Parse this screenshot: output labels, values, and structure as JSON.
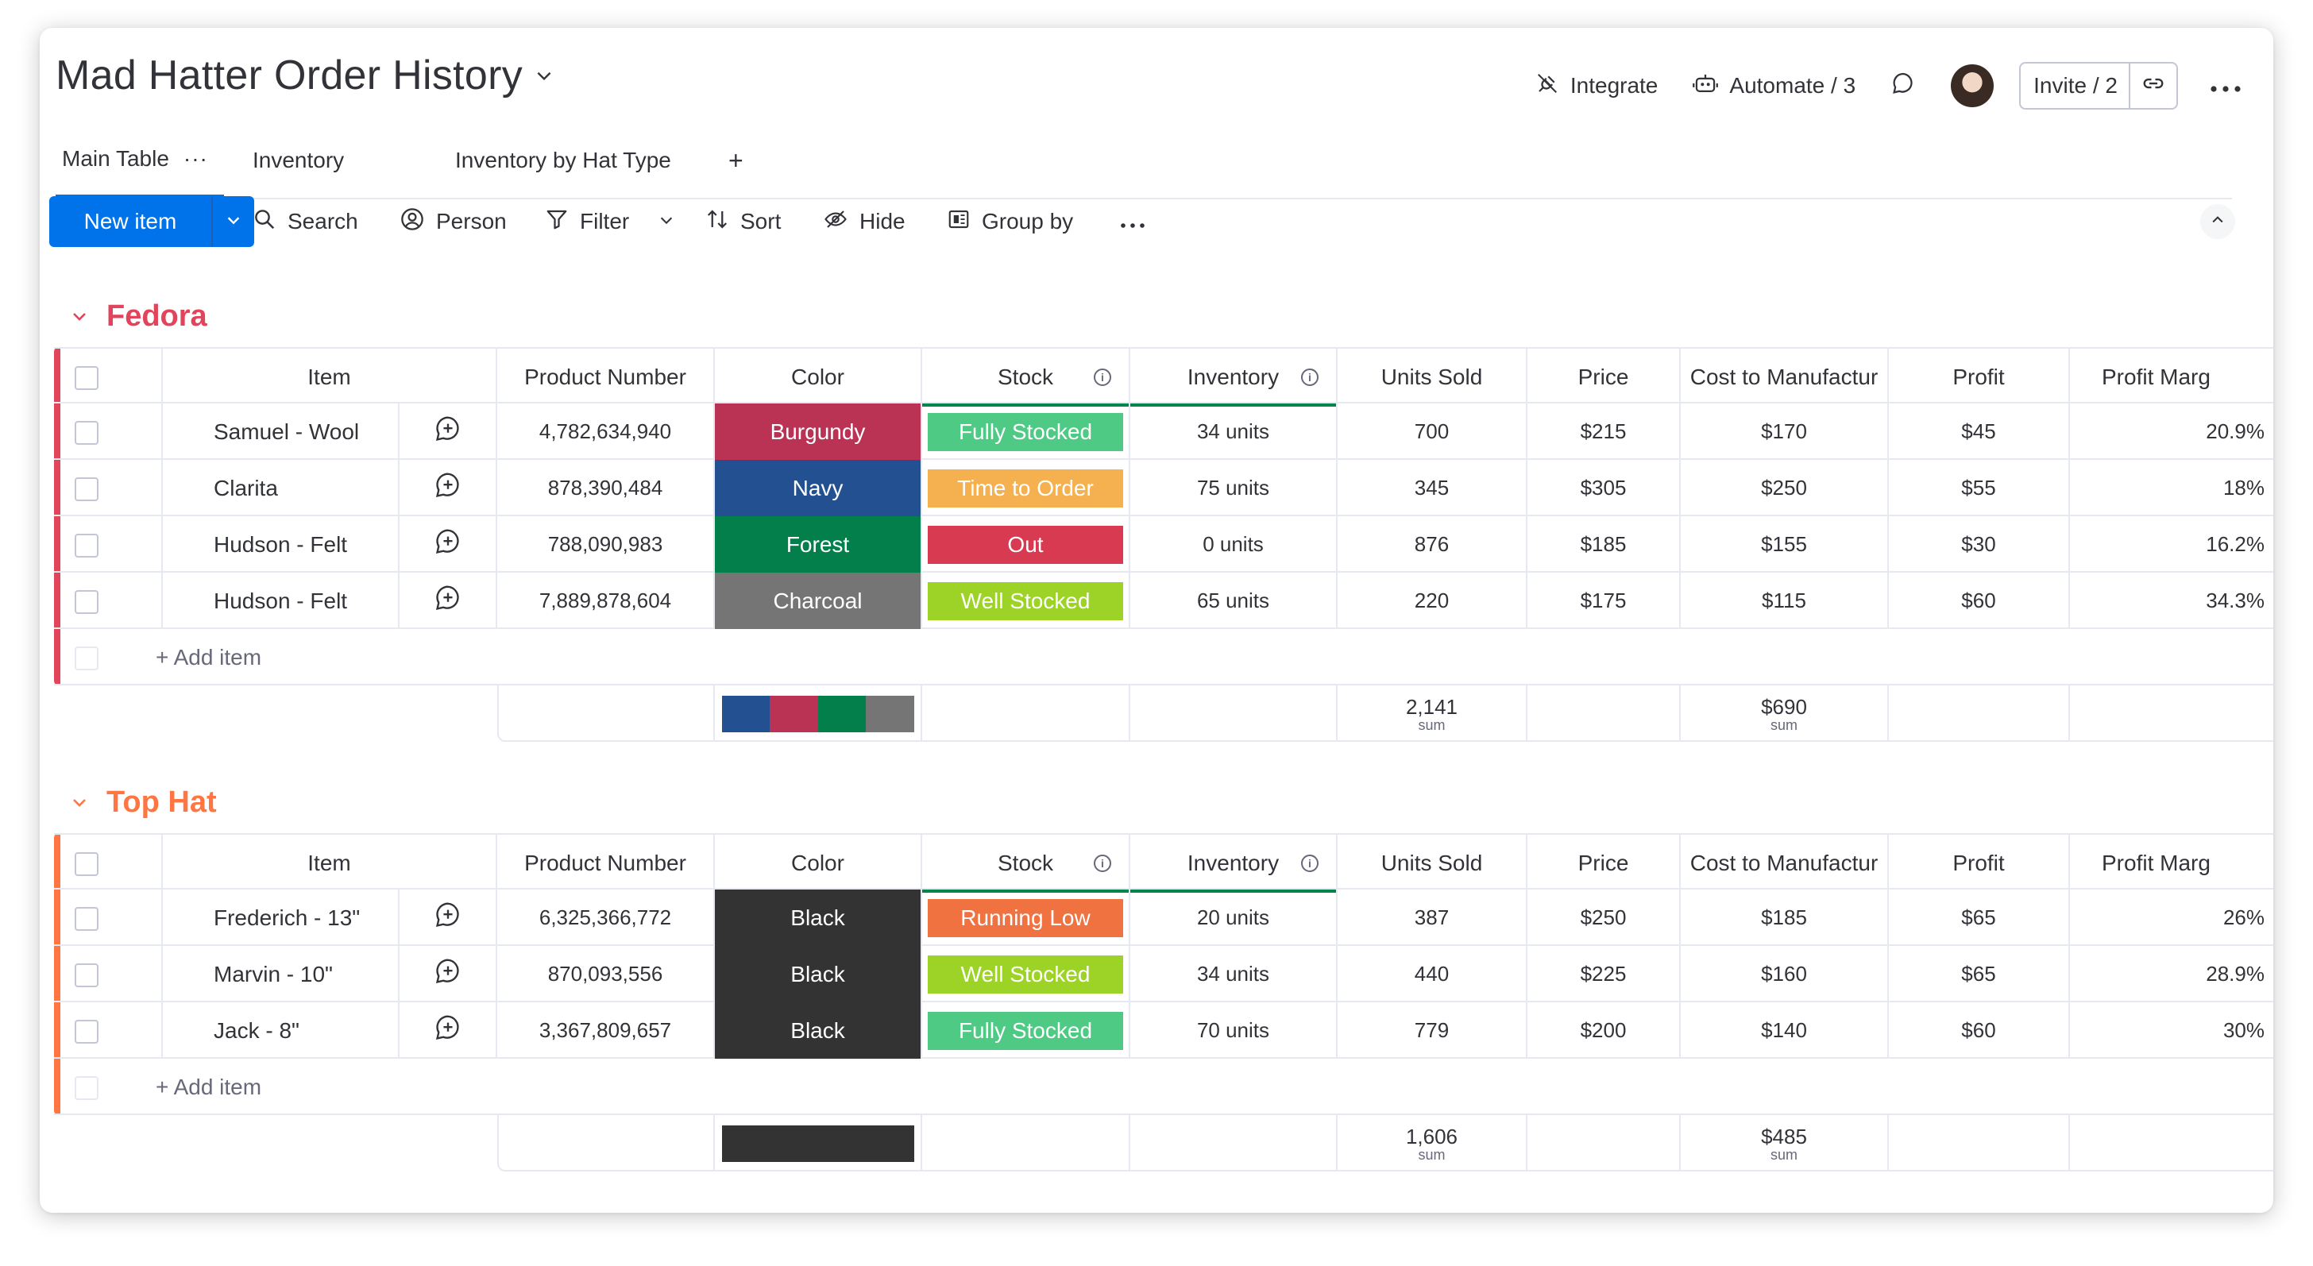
{
  "header": {
    "title": "Mad Hatter Order History",
    "integrate_label": "Integrate",
    "automate_label": "Automate / 3",
    "invite_label": "Invite / 2"
  },
  "tabs": [
    {
      "label": "Main Table"
    },
    {
      "label": "Inventory"
    },
    {
      "label": "Inventory by Hat Type"
    }
  ],
  "toolbar": {
    "new_item": "New item",
    "search": "Search",
    "person": "Person",
    "filter": "Filter",
    "sort": "Sort",
    "hide": "Hide",
    "group_by": "Group by"
  },
  "columns": [
    "Item",
    "Product Number",
    "Color",
    "Stock",
    "Inventory",
    "Units Sold",
    "Price",
    "Cost to Manufactur",
    "Profit",
    "Profit Marg"
  ],
  "colors": {
    "Burgundy": "#bb3354",
    "Navy": "#225091",
    "Forest": "#037f4c",
    "Charcoal": "#757575",
    "Black": "#333333",
    "Fully Stocked": "#4eca84",
    "Time to Order": "#f5b04f",
    "Out": "#d83a52",
    "Well Stocked": "#9cd326",
    "Running Low": "#f07241",
    "fedora_group": "#e2445c",
    "tophat_group": "#ff7643",
    "accent": "#0073ea"
  },
  "groups": [
    {
      "name": "Fedora",
      "color": "#e2445c",
      "rows": [
        {
          "item": "Samuel - Wool",
          "product_number": "4,782,634,940",
          "color": "Burgundy",
          "stock": "Fully Stocked",
          "inventory": "34 units",
          "units_sold": "700",
          "price": "$215",
          "cost": "$170",
          "profit": "$45",
          "margin": "20.9%"
        },
        {
          "item": "Clarita",
          "product_number": "878,390,484",
          "color": "Navy",
          "stock": "Time to Order",
          "inventory": "75 units",
          "units_sold": "345",
          "price": "$305",
          "cost": "$250",
          "profit": "$55",
          "margin": "18%"
        },
        {
          "item": "Hudson - Felt",
          "product_number": "788,090,983",
          "color": "Forest",
          "stock": "Out",
          "inventory": "0 units",
          "units_sold": "876",
          "price": "$185",
          "cost": "$155",
          "profit": "$30",
          "margin": "16.2%"
        },
        {
          "item": "Hudson - Felt",
          "product_number": "7,889,878,604",
          "color": "Charcoal",
          "stock": "Well Stocked",
          "inventory": "65 units",
          "units_sold": "220",
          "price": "$175",
          "cost": "$115",
          "profit": "$60",
          "margin": "34.3%"
        }
      ],
      "add_item": "+ Add item",
      "summary": {
        "units_sold": "2,141",
        "units_sold_label": "sum",
        "cost": "$690",
        "cost_label": "sum",
        "swatches": [
          "Navy",
          "Burgundy",
          "Forest",
          "Charcoal"
        ]
      }
    },
    {
      "name": "Top Hat",
      "color": "#ff7643",
      "rows": [
        {
          "item": "Frederich - 13\"",
          "product_number": "6,325,366,772",
          "color": "Black",
          "stock": "Running Low",
          "inventory": "20 units",
          "units_sold": "387",
          "price": "$250",
          "cost": "$185",
          "profit": "$65",
          "margin": "26%"
        },
        {
          "item": "Marvin - 10\"",
          "product_number": "870,093,556",
          "color": "Black",
          "stock": "Well Stocked",
          "inventory": "34 units",
          "units_sold": "440",
          "price": "$225",
          "cost": "$160",
          "profit": "$65",
          "margin": "28.9%"
        },
        {
          "item": "Jack - 8\"",
          "product_number": "3,367,809,657",
          "color": "Black",
          "stock": "Fully Stocked",
          "inventory": "70 units",
          "units_sold": "779",
          "price": "$200",
          "cost": "$140",
          "profit": "$60",
          "margin": "30%"
        }
      ],
      "add_item": "+ Add item",
      "summary": {
        "units_sold": "1,606",
        "units_sold_label": "sum",
        "cost": "$485",
        "cost_label": "sum",
        "swatches": [
          "Black"
        ]
      }
    }
  ]
}
